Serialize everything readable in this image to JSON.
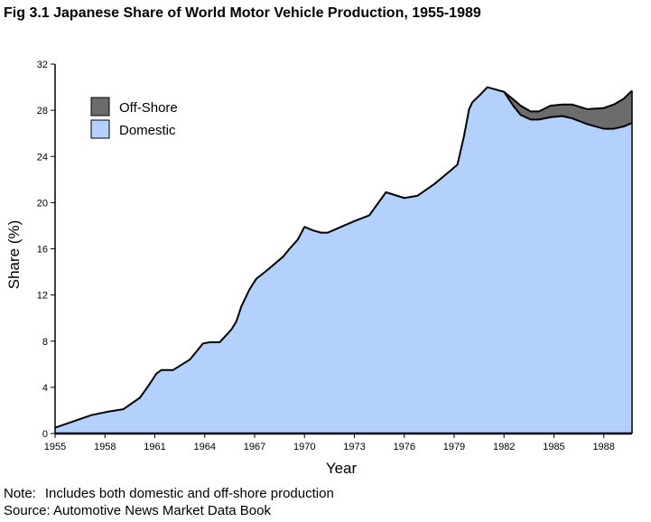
{
  "title": "Fig 3.1 Japanese Share of World Motor Vehicle Production, 1955-1989",
  "note": {
    "label": "Note:",
    "text": "Includes both domestic and off-shore production"
  },
  "source": "Source: Automotive News Market Data Book",
  "chart_data": {
    "type": "area",
    "stacked": true,
    "xlabel": "Year",
    "ylabel": "Share (%)",
    "xlim": [
      1955,
      1989.7
    ],
    "ylim": [
      0,
      32
    ],
    "xticks": [
      1955,
      1958,
      1961,
      1964,
      1967,
      1970,
      1973,
      1976,
      1979,
      1982,
      1985,
      1988
    ],
    "yticks": [
      0,
      4,
      8,
      12,
      16,
      20,
      24,
      28,
      32
    ],
    "grid": false,
    "legend_position": "top-left",
    "series": [
      {
        "name": "Domestic",
        "color": "#b4d0fd",
        "points": [
          [
            1955,
            0.5
          ],
          [
            1957.2,
            1.6
          ],
          [
            1958.2,
            1.9
          ],
          [
            1959.1,
            2.1
          ],
          [
            1960.1,
            3.1
          ],
          [
            1960.6,
            4.1
          ],
          [
            1961.1,
            5.2
          ],
          [
            1961.4,
            5.5
          ],
          [
            1962.1,
            5.5
          ],
          [
            1963.1,
            6.4
          ],
          [
            1963.9,
            7.8
          ],
          [
            1964.3,
            7.9
          ],
          [
            1964.9,
            7.9
          ],
          [
            1965.6,
            9.0
          ],
          [
            1965.9,
            9.7
          ],
          [
            1966.2,
            11.0
          ],
          [
            1966.7,
            12.5
          ],
          [
            1967.1,
            13.4
          ],
          [
            1967.8,
            14.2
          ],
          [
            1968.7,
            15.3
          ],
          [
            1969.1,
            16.0
          ],
          [
            1969.6,
            16.8
          ],
          [
            1970.0,
            17.9
          ],
          [
            1970.5,
            17.6
          ],
          [
            1971.0,
            17.4
          ],
          [
            1971.4,
            17.4
          ],
          [
            1972.2,
            17.9
          ],
          [
            1973.0,
            18.4
          ],
          [
            1973.9,
            18.9
          ],
          [
            1974.9,
            20.9
          ],
          [
            1976.0,
            20.4
          ],
          [
            1976.8,
            20.6
          ],
          [
            1977.8,
            21.6
          ],
          [
            1978.8,
            22.8
          ],
          [
            1979.2,
            23.3
          ],
          [
            1979.6,
            25.8
          ],
          [
            1979.9,
            28.1
          ],
          [
            1980.1,
            28.7
          ],
          [
            1980.6,
            29.4
          ],
          [
            1981.0,
            30.0
          ],
          [
            1981.5,
            29.8
          ],
          [
            1982.0,
            29.6
          ],
          [
            1982.6,
            28.3
          ],
          [
            1983.0,
            27.6
          ],
          [
            1983.6,
            27.2
          ],
          [
            1984.1,
            27.2
          ],
          [
            1984.8,
            27.4
          ],
          [
            1985.5,
            27.5
          ],
          [
            1986.1,
            27.3
          ],
          [
            1987.0,
            26.8
          ],
          [
            1988.0,
            26.4
          ],
          [
            1988.6,
            26.4
          ],
          [
            1989.2,
            26.6
          ],
          [
            1989.7,
            26.9
          ]
        ]
      },
      {
        "name": "Off-Shore",
        "color": "#6c6c6c",
        "points": [
          [
            1982.0,
            0.0
          ],
          [
            1982.6,
            0.6
          ],
          [
            1983.0,
            0.8
          ],
          [
            1983.6,
            0.7
          ],
          [
            1984.1,
            0.7
          ],
          [
            1984.8,
            1.0
          ],
          [
            1985.5,
            1.0
          ],
          [
            1986.1,
            1.2
          ],
          [
            1987.0,
            1.3
          ],
          [
            1988.0,
            1.8
          ],
          [
            1988.6,
            2.1
          ],
          [
            1989.2,
            2.4
          ],
          [
            1989.7,
            2.8
          ]
        ]
      }
    ]
  }
}
